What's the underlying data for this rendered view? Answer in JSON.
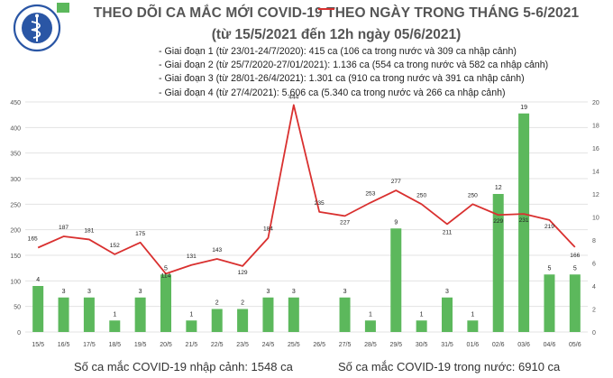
{
  "header": {
    "logo_text": "BỘ Y TẾ · MINISTRY OF HEALTH",
    "title": "THEO DÕI CA MẮC MỚI COVID-19 THEO NGÀY TRONG THÁNG 5-6/2021",
    "subtitle": "(từ 15/5/2021 đến 12h ngày 05/6/2021)",
    "periods": [
      "- Giai đoạn 1 (từ 23/01-24/7/2020): 415 ca (106 ca trong nước và 309 ca nhập cảnh)",
      "- Giai đoạn 2 (từ 25/7/2020-27/01/2021): 1.136 ca (554 ca trong nước và 582 ca nhập cảnh)",
      "- Giai đoạn 3 (từ 28/01-26/4/2021): 1.301 ca (910 ca trong nước và 391 ca nhập cảnh)",
      "- Giai đoạn 4 (từ 27/4/2021): 5.606 ca (5.340 ca trong nước và 266 ca nhập cảnh)"
    ]
  },
  "legend": {
    "bar_label": "Số ca mắc COVID-19 nhập cảnh: 1548 ca",
    "line_label": "Số ca mắc COVID-19 trong nước: 6910 ca"
  },
  "colors": {
    "bar": "#5cb85c",
    "bar_highlight": "#2e9e49",
    "line": "#d9302f",
    "grid": "#e3e3e3",
    "logo": "#2a56a5"
  },
  "chart_data": {
    "type": "bar",
    "categories": [
      "15/5",
      "16/5",
      "17/5",
      "18/5",
      "19/5",
      "20/5",
      "21/5",
      "22/5",
      "23/5",
      "24/5",
      "25/5",
      "26/5",
      "27/5",
      "28/5",
      "29/5",
      "30/5",
      "31/5",
      "01/6",
      "02/6",
      "03/6",
      "04/6",
      "05/6"
    ],
    "left_axis": {
      "min": 0,
      "max": 450,
      "ticks": [
        "0",
        "50",
        "100",
        "150",
        "200",
        "250",
        "300",
        "350",
        "400",
        "450"
      ]
    },
    "right_axis": {
      "min": 0,
      "max": 20,
      "ticks": [
        "0",
        "2",
        "4",
        "6",
        "8",
        "10",
        "12",
        "14",
        "16",
        "18",
        "20"
      ]
    },
    "series": [
      {
        "name": "Số ca mắc COVID-19 nhập cảnh",
        "axis": "right",
        "kind": "bar",
        "values": [
          4,
          3,
          3,
          1,
          3,
          5,
          1,
          2,
          2,
          3,
          3,
          null,
          3,
          1,
          9,
          1,
          3,
          1,
          12,
          19,
          5,
          5
        ],
        "labels": [
          "4",
          "3",
          "3",
          "1",
          "3",
          "5",
          "1",
          "2",
          "2",
          "3",
          "3",
          "",
          "3",
          "1",
          "9",
          "1",
          "3",
          "1",
          "12",
          "19",
          "5",
          "5"
        ]
      },
      {
        "name": "Số ca mắc COVID-19 trong nước",
        "axis": "left",
        "kind": "line",
        "values": [
          165,
          187,
          181,
          152,
          175,
          114,
          131,
          143,
          129,
          184,
          444,
          235,
          227,
          253,
          277,
          250,
          211,
          250,
          229,
          231,
          219,
          166
        ],
        "labels": [
          "165",
          "187",
          "181",
          "152",
          "175",
          "114",
          "131",
          "143",
          "129",
          "184",
          "444",
          "235",
          "227",
          "253",
          "277",
          "250",
          "211",
          "250",
          "229",
          "231",
          "219",
          "166"
        ]
      }
    ]
  }
}
